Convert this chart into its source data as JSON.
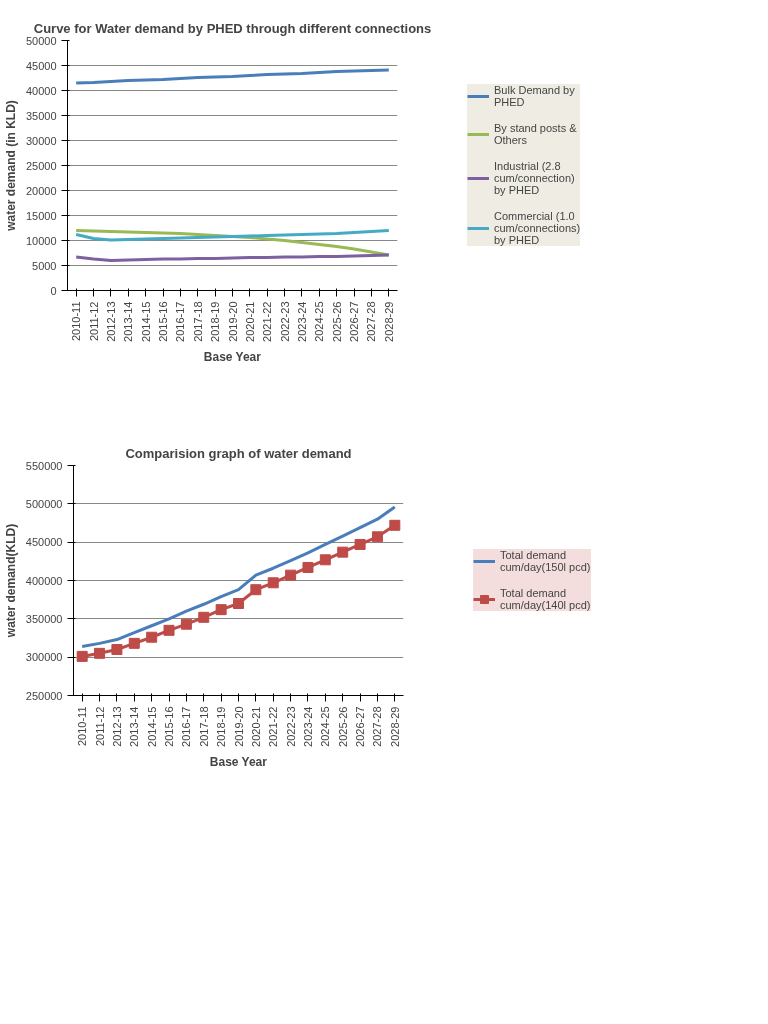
{
  "chart_data": [
    {
      "type": "line",
      "title": "Curve for Water demand by PHED through different connections",
      "xlabel": "Base Year",
      "ylabel": "water demand (in KLD)",
      "categories": [
        "2010-11",
        "2011-12",
        "2012-13",
        "2013-14",
        "2014-15",
        "2015-16",
        "2016-17",
        "2017-18",
        "2018-19",
        "2019-20",
        "2020-21",
        "2021-22",
        "2022-23",
        "2023-24",
        "2024-25",
        "2025-26",
        "2026-27",
        "2027-28",
        "2028-29"
      ],
      "series": [
        {
          "name": "Bulk Demand by PHED",
          "color": "#4a7ebb",
          "values": [
            41500,
            41600,
            41800,
            42000,
            42100,
            42200,
            42400,
            42600,
            42700,
            42800,
            43000,
            43200,
            43300,
            43400,
            43600,
            43800,
            43900,
            44000,
            44100
          ]
        },
        {
          "name": "By stand posts & Others",
          "color": "#98b954",
          "values": [
            12000,
            11900,
            11800,
            11700,
            11600,
            11500,
            11400,
            11200,
            11000,
            10800,
            10600,
            10300,
            10000,
            9600,
            9200,
            8800,
            8300,
            7700,
            7100
          ]
        },
        {
          "name": "Industrial (2.8 cum/connection) by PHED",
          "color": "#7d60a0",
          "values": [
            6700,
            6300,
            6000,
            6100,
            6200,
            6300,
            6300,
            6400,
            6400,
            6500,
            6600,
            6600,
            6700,
            6700,
            6800,
            6800,
            6900,
            7000,
            7100
          ]
        },
        {
          "name": "Commercial (1.0 cum/connections) by PHED",
          "color": "#46aac5",
          "values": [
            11200,
            10400,
            10100,
            10200,
            10300,
            10400,
            10500,
            10600,
            10700,
            10800,
            10900,
            11000,
            11100,
            11200,
            11300,
            11400,
            11600,
            11800,
            12000
          ]
        }
      ],
      "ylim": [
        0,
        50000
      ],
      "yticks": [
        0,
        5000,
        10000,
        15000,
        20000,
        25000,
        30000,
        35000,
        40000,
        45000,
        50000
      ],
      "grid": "y",
      "legend": "right",
      "marker": "none"
    },
    {
      "type": "line",
      "title": "Comparision graph of water demand",
      "xlabel": "Base Year",
      "ylabel": "water demand(KLD)",
      "categories": [
        "2010-11",
        "2011-12",
        "2012-13",
        "2013-14",
        "2014-15",
        "2015-16",
        "2016-17",
        "2017-18",
        "2018-19",
        "2019-20",
        "2020-21",
        "2021-22",
        "2022-23",
        "2023-24",
        "2024-25",
        "2025-26",
        "2026-27",
        "2027-28",
        "2028-29"
      ],
      "series": [
        {
          "name": "Total demand cum/day(150l pcd)",
          "color": "#4a7ebb",
          "marker": "none",
          "values": [
            314000,
            318000,
            323000,
            332000,
            341000,
            350000,
            360000,
            369000,
            379000,
            388000,
            407000,
            416000,
            426000,
            436000,
            447000,
            458000,
            469000,
            480000,
            496000
          ]
        },
        {
          "name": "Total demand cum/day(140l pcd)",
          "color": "#be4b48",
          "marker": "square",
          "values": [
            301000,
            305000,
            310000,
            318000,
            326000,
            335000,
            343000,
            352000,
            362000,
            370000,
            388000,
            397000,
            407000,
            417000,
            427000,
            437000,
            447000,
            457000,
            472000
          ]
        }
      ],
      "ylim": [
        250000,
        550000
      ],
      "yticks": [
        250000,
        300000,
        350000,
        400000,
        450000,
        500000,
        550000
      ],
      "grid": "y",
      "legend": "right"
    }
  ]
}
